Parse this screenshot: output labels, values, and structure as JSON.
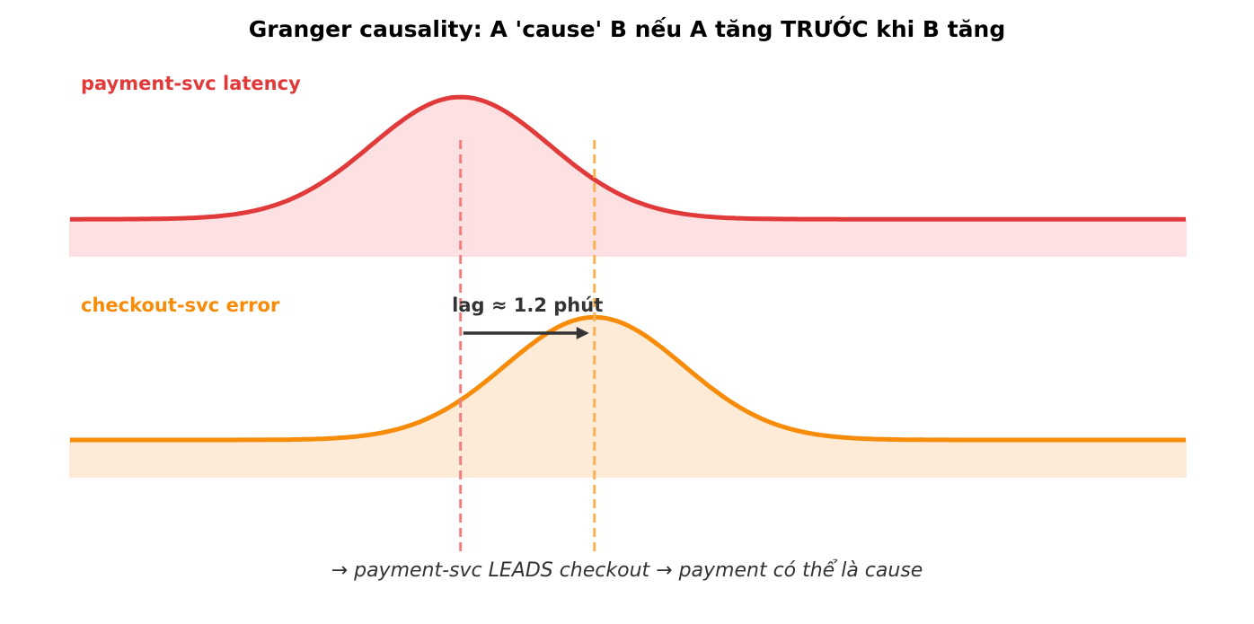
{
  "chart_data": {
    "type": "area",
    "title": "Granger causality: A 'cause' B nếu A tăng TRƯỚC khi B tăng",
    "x_range": [
      0,
      10
    ],
    "y_range": [
      -0.3,
      1.5
    ],
    "series": [
      {
        "name": "payment-svc latency",
        "color": "#e03a3a",
        "fill": "#fde0e2",
        "peak_x": 3.5,
        "peak_height": 1.0,
        "sigma": 0.8,
        "baseline": 0.0,
        "fill_floor": -0.3
      },
      {
        "name": "checkout-svc error",
        "color": "#f78c0a",
        "fill": "#fdebd7",
        "peak_x": 4.7,
        "peak_height": 1.0,
        "sigma": 0.8,
        "baseline": 0.0,
        "fill_floor": -0.3
      }
    ],
    "markers": [
      {
        "x": 3.5,
        "color": "#f08080",
        "style": "dashed"
      },
      {
        "x": 4.7,
        "color": "#fbb253",
        "style": "dashed"
      }
    ],
    "annotation": {
      "text": "lag ≈ 1.2 phút",
      "from_x": 3.5,
      "to_x": 4.7,
      "arrow_color": "#333333"
    },
    "caption": "→ payment-svc LEADS checkout → payment có thể là cause"
  }
}
